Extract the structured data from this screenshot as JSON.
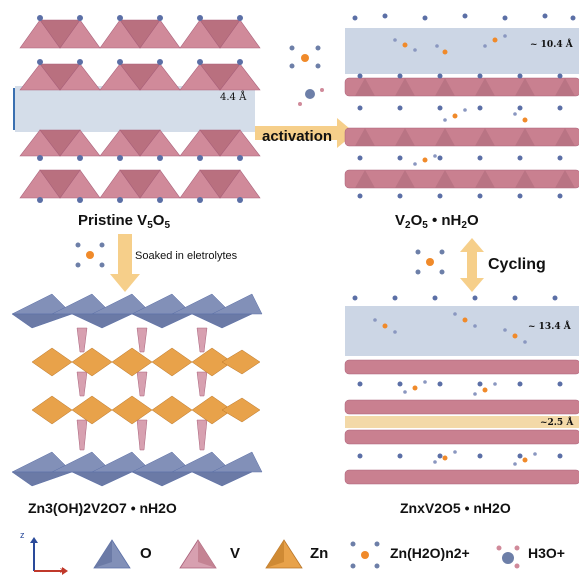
{
  "panels": {
    "pristine": {
      "label_main": "Pristine V",
      "label_sub": "5",
      "label_mid": "O",
      "interlayer": "4.4 Å"
    },
    "hydrated": {
      "label_a": "V",
      "label_b": "O",
      "label_c": " • nH",
      "label_d": "O",
      "sub2": "2",
      "sub5": "5",
      "interlayer": "~ 10.4 Å"
    },
    "zn3": {
      "label": "Zn3(OH)2V2O7 • nH2O"
    },
    "znx": {
      "label": "ZnxV2O5 • nH2O",
      "interlayer": "~ 13.4 Å",
      "small_gap": "~2.5 Å"
    }
  },
  "arrows": {
    "activation": "activation",
    "soaked": "Soaked  in eletrolytes",
    "cycling": "Cycling"
  },
  "legend": {
    "o": "O",
    "v": "V",
    "zn": "Zn",
    "hydrated_zn": "Zn(H2O)n2+",
    "hydronium": "H3O+",
    "axis_z": "z",
    "axis_x": "x"
  },
  "colors": {
    "vanadium": "#d08a9a",
    "oxygen": "#6d7fa8",
    "zinc": "#e8a24a",
    "interlayer": "#c3cfe0",
    "arrow": "#f6cf8a"
  }
}
